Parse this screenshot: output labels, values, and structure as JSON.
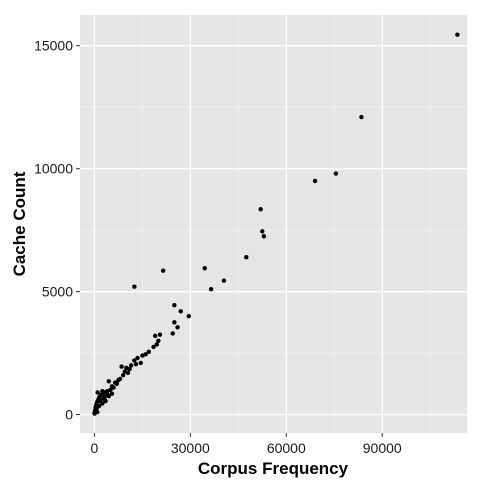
{
  "chart_data": {
    "type": "scatter",
    "title": "",
    "xlabel": "Corpus Frequency",
    "ylabel": "Cache Count",
    "xlim": [
      -4500,
      116500
    ],
    "ylim": [
      -750,
      16250
    ],
    "x_ticks": [
      0,
      30000,
      60000,
      90000
    ],
    "y_ticks": [
      0,
      5000,
      10000,
      15000
    ],
    "x_tick_labels": [
      "0",
      "30000",
      "60000",
      "90000"
    ],
    "y_tick_labels": [
      "0",
      "5000",
      "10000",
      "15000"
    ],
    "grid": true,
    "legend": "none",
    "colors": {
      "panel": "#e5e5e5",
      "grid_major": "#ffffff",
      "grid_minor": "#f2f2f2",
      "point": "#000000"
    },
    "series": [
      {
        "points": [
          [
            113500,
            15450
          ],
          [
            83500,
            12100
          ],
          [
            75500,
            9800
          ],
          [
            69000,
            9500
          ],
          [
            52000,
            8350
          ],
          [
            52500,
            7450
          ],
          [
            53000,
            7250
          ],
          [
            47500,
            6400
          ],
          [
            34500,
            5950
          ],
          [
            21500,
            5850
          ],
          [
            12500,
            5200
          ],
          [
            40500,
            5450
          ],
          [
            36500,
            5100
          ],
          [
            25000,
            4450
          ],
          [
            27000,
            4200
          ],
          [
            29500,
            4000
          ],
          [
            25000,
            3750
          ],
          [
            26000,
            3550
          ],
          [
            24500,
            3300
          ],
          [
            20500,
            3250
          ],
          [
            19000,
            3200
          ],
          [
            20000,
            3000
          ],
          [
            19500,
            2850
          ],
          [
            18500,
            2750
          ],
          [
            17000,
            2550
          ],
          [
            16000,
            2450
          ],
          [
            15000,
            2400
          ],
          [
            13500,
            2300
          ],
          [
            12500,
            2200
          ],
          [
            14500,
            2100
          ],
          [
            13000,
            2050
          ],
          [
            11500,
            2000
          ],
          [
            10000,
            1900
          ],
          [
            8500,
            1950
          ],
          [
            11000,
            1850
          ],
          [
            9500,
            1750
          ],
          [
            10500,
            1700
          ],
          [
            9000,
            1600
          ],
          [
            8000,
            1450
          ],
          [
            7500,
            1400
          ],
          [
            6500,
            1300
          ],
          [
            7000,
            1250
          ],
          [
            4500,
            1350
          ],
          [
            5500,
            1150
          ],
          [
            6000,
            1100
          ],
          [
            5000,
            1000
          ],
          [
            4000,
            950
          ],
          [
            3500,
            900
          ],
          [
            3000,
            850
          ],
          [
            2500,
            950
          ],
          [
            2000,
            800
          ],
          [
            1500,
            700
          ],
          [
            1000,
            900
          ],
          [
            1200,
            600
          ],
          [
            3200,
            700
          ],
          [
            2800,
            650
          ],
          [
            4500,
            750
          ],
          [
            5500,
            850
          ],
          [
            800,
            500
          ],
          [
            600,
            400
          ],
          [
            400,
            300
          ],
          [
            300,
            200
          ],
          [
            200,
            150
          ],
          [
            100,
            80
          ],
          [
            50,
            40
          ],
          [
            1500,
            350
          ],
          [
            2500,
            450
          ],
          [
            700,
            250
          ],
          [
            3500,
            550
          ],
          [
            4200,
            800
          ],
          [
            1800,
            550
          ],
          [
            900,
            100
          ]
        ]
      }
    ]
  }
}
